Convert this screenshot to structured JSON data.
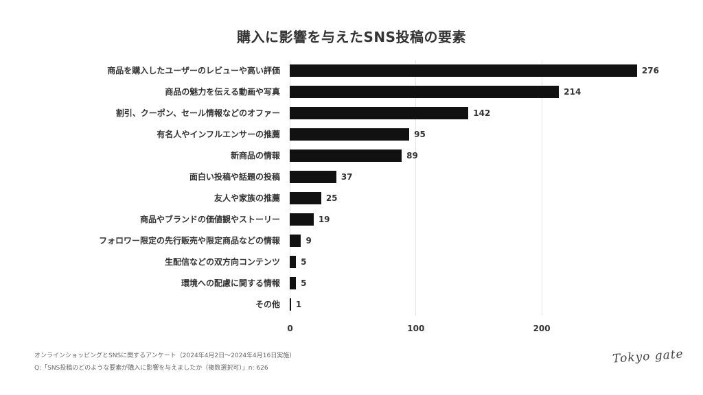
{
  "header": {
    "title": "購入に影響を与えたSNS投稿の要素"
  },
  "footer": {
    "survey_line": "オンラインショッピングとSNSに関するアンケート（2024年4月2日〜2024年4月16日実施）",
    "question_line": "Q:「SNS投稿のどのような要素が購入に影響を与えましたか（複数選択可）」n: 626"
  },
  "logo": {
    "text": "Tokyo gate"
  },
  "colors": {
    "bar": "#111111",
    "grid": "#e3e3e3",
    "text": "#333333"
  },
  "chart_data": {
    "type": "bar",
    "orientation": "horizontal",
    "title": "購入に影響を与えたSNS投稿の要素",
    "xlabel": "",
    "ylabel": "",
    "categories": [
      "商品を購入したユーザーのレビューや高い評価",
      "商品の魅力を伝える動画や写真",
      "割引、クーポン、セール情報などのオファー",
      "有名人やインフルエンサーの推薦",
      "新商品の情報",
      "面白い投稿や話題の投稿",
      "友人や家族の推薦",
      "商品やブランドの価値観やストーリー",
      "フォロワー限定の先行販売や限定商品などの情報",
      "生配信などの双方向コンテンツ",
      "環境への配慮に関する情報",
      "その他"
    ],
    "values": [
      276,
      214,
      142,
      95,
      89,
      37,
      25,
      19,
      9,
      5,
      5,
      1
    ],
    "xticks": [
      "0",
      "100",
      "200"
    ],
    "xlim": [
      0,
      300
    ],
    "grid": true,
    "legend": null,
    "sample_size": 626
  }
}
